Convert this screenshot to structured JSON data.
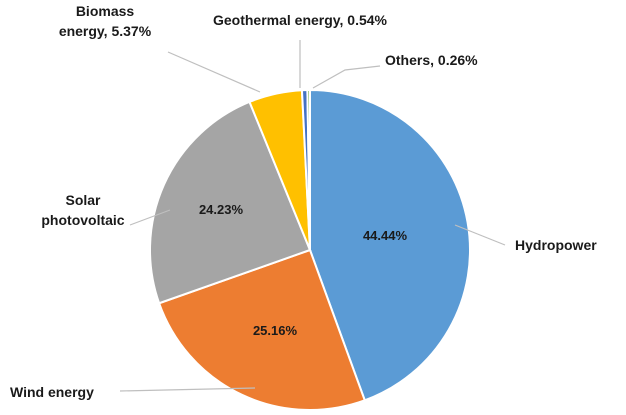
{
  "chart_data": {
    "type": "pie",
    "categories": [
      "Hydropower",
      "Wind energy",
      "Solar photovoltaic",
      "Biomass energy",
      "Geothermal energy",
      "Others"
    ],
    "values": [
      44.44,
      25.16,
      24.23,
      5.37,
      0.54,
      0.26
    ],
    "slices": [
      {
        "name": "Hydropower",
        "value": 44.44,
        "color": "#5b9bd5",
        "label_lines": [
          "Hydropower"
        ],
        "data_label": "44.44%"
      },
      {
        "name": "Wind energy",
        "value": 25.16,
        "color": "#ed7d31",
        "label_lines": [
          "Wind energy"
        ],
        "data_label": "25.16%"
      },
      {
        "name": "Solar photovoltaic",
        "value": 24.23,
        "color": "#a5a5a5",
        "label_lines": [
          "Solar",
          "photovoltaic"
        ],
        "data_label": "24.23%"
      },
      {
        "name": "Biomass energy",
        "value": 5.37,
        "color": "#ffc000",
        "label_lines": [
          "Biomass",
          "energy, 5.37%"
        ],
        "data_label": ""
      },
      {
        "name": "Geothermal energy",
        "value": 0.54,
        "color": "#4472c4",
        "label_lines": [
          "Geothermal energy, 0.54%"
        ],
        "data_label": ""
      },
      {
        "name": "Others",
        "value": 0.26,
        "color": "#70ad47",
        "label_lines": [
          "Others, 0.26%"
        ],
        "data_label": ""
      }
    ],
    "start_angle_deg": 0,
    "direction": "clockwise",
    "legend": "none"
  }
}
